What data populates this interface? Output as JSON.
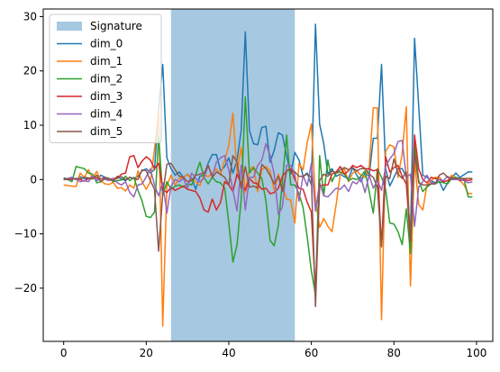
{
  "chart_data": {
    "type": "line",
    "title": "",
    "xlabel": "",
    "ylabel": "",
    "xlim": [
      -4.95,
      103.95
    ],
    "ylim": [
      -29.8,
      31.4
    ],
    "xticks": [
      0,
      20,
      40,
      60,
      80,
      100
    ],
    "yticks": [
      -20,
      -10,
      0,
      10,
      20,
      30
    ],
    "xtick_labels": [
      "0",
      "20",
      "40",
      "60",
      "80",
      "100"
    ],
    "ytick_labels": [
      "−20",
      "−10",
      "0",
      "10",
      "20",
      "30"
    ],
    "grid": false,
    "legend_location": "upper-left",
    "shaded_region": {
      "name": "Signature",
      "x_start": 26,
      "x_end": 56,
      "color": "#a6c8e0"
    },
    "series": [
      {
        "name": "dim_0",
        "color": "#1f77b4",
        "values": [
          0.3,
          0.1,
          0.4,
          0.0,
          0.5,
          0.2,
          0.1,
          0.6,
          -0.2,
          0.8,
          0.4,
          0.2,
          -0.3,
          0.5,
          0.1,
          -0.2,
          0.4,
          0.2,
          0.6,
          1.6,
          2.0,
          1.2,
          1.8,
          13.0,
          21.2,
          4.0,
          2.0,
          0.8,
          1.4,
          0.4,
          1.0,
          0.2,
          -1.8,
          0.6,
          0.8,
          3.0,
          4.6,
          4.6,
          1.6,
          2.4,
          4.0,
          1.2,
          3.6,
          9.0,
          27.2,
          9.0,
          6.6,
          6.4,
          9.6,
          9.8,
          3.2,
          5.4,
          8.6,
          8.2,
          4.4,
          1.0,
          5.0,
          3.6,
          0.6,
          1.2,
          -1.0,
          28.6,
          10.2,
          6.6,
          1.0,
          2.0,
          0.6,
          1.0,
          0.5,
          0.2,
          2.2,
          0.8,
          -0.4,
          1.2,
          0.6,
          7.6,
          7.6,
          21.2,
          2.0,
          -1.2,
          0.4,
          2.0,
          2.0,
          0.5,
          -10.6,
          26.0,
          13.6,
          0.8,
          0.4,
          -0.2,
          -0.6,
          -0.4,
          -2.0,
          -0.6,
          0.4,
          1.2,
          0.4,
          0.9,
          1.4,
          1.4
        ]
      },
      {
        "name": "dim_1",
        "color": "#ff7f0e",
        "values": [
          -1.0,
          -1.1,
          -1.2,
          -1.3,
          1.2,
          0.4,
          1.8,
          0.2,
          1.5,
          -0.2,
          -0.8,
          -0.9,
          -0.5,
          -1.6,
          -1.5,
          -2.1,
          -1.0,
          -1.6,
          1.6,
          -0.4,
          -1.8,
          -0.4,
          5.6,
          12.6,
          -27.0,
          -1.2,
          0.8,
          -1.0,
          0.2,
          0.3,
          1.0,
          -0.2,
          -0.4,
          -1.1,
          1.0,
          0.5,
          1.2,
          2.0,
          0.8,
          3.6,
          6.2,
          12.2,
          1.2,
          6.0,
          -2.4,
          1.8,
          2.4,
          -2.2,
          1.8,
          2.4,
          1.6,
          -2.0,
          1.0,
          -1.2,
          -3.6,
          -3.8,
          -8.0,
          3.0,
          1.8,
          6.8,
          10.2,
          -3.8,
          -8.8,
          -7.2,
          -8.6,
          -9.6,
          -4.6,
          1.0,
          2.0,
          -0.4,
          1.2,
          1.6,
          0.8,
          0.4,
          2.2,
          13.2,
          13.2,
          -25.8,
          5.2,
          6.4,
          6.0,
          0.4,
          4.8,
          13.4,
          -19.6,
          3.6,
          -4.6,
          -5.6,
          -1.0,
          -0.2,
          0.4,
          0.4,
          -0.4,
          -0.2,
          0.8,
          0.4,
          -0.2,
          -1.0,
          -2.6,
          -2.6
        ]
      },
      {
        "name": "dim_2",
        "color": "#2ca02c",
        "values": [
          0.0,
          0.0,
          -0.4,
          2.4,
          2.2,
          2.0,
          1.2,
          1.0,
          -0.6,
          -0.4,
          0.2,
          0.2,
          -0.4,
          -0.2,
          -0.1,
          0.6,
          -0.2,
          0.4,
          -2.0,
          -4.0,
          -6.8,
          -7.0,
          -6.0,
          8.0,
          -3.0,
          -0.4,
          -1.8,
          -1.2,
          -1.0,
          -1.4,
          -0.8,
          -1.0,
          1.0,
          3.2,
          0.4,
          -0.8,
          0.4,
          -0.4,
          -0.6,
          -1.6,
          -8.0,
          -15.2,
          -12.0,
          -3.6,
          15.2,
          1.2,
          2.2,
          1.2,
          0.2,
          -4.0,
          -11.2,
          -12.2,
          -8.4,
          -0.2,
          8.2,
          -1.0,
          -1.0,
          -2.6,
          -5.2,
          -10.6,
          -16.8,
          -21.2,
          4.4,
          -3.0,
          3.6,
          -0.4,
          1.2,
          1.4,
          1.0,
          -0.2,
          0.2,
          0.0,
          0.6,
          1.6,
          -2.2,
          -6.2,
          2.0,
          0.4,
          -1.8,
          -8.0,
          -8.2,
          -9.6,
          -12.0,
          -5.4,
          -13.6,
          6.4,
          -0.2,
          -2.2,
          -1.4,
          -0.8,
          -0.8,
          -0.4,
          -0.6,
          -0.8,
          0.2,
          0.4,
          0.2,
          0.0,
          -3.2,
          -3.2
        ]
      },
      {
        "name": "dim_3",
        "color": "#d62728",
        "values": [
          0.2,
          0.0,
          0.1,
          0.2,
          0.0,
          -0.3,
          0.2,
          0.4,
          0.3,
          0.1,
          0.4,
          0.0,
          0.2,
          0.2,
          1.0,
          1.2,
          4.2,
          4.4,
          2.2,
          3.4,
          4.2,
          3.6,
          2.0,
          3.0,
          -1.8,
          -2.4,
          -1.4,
          -2.0,
          -1.6,
          -1.2,
          -1.8,
          -2.0,
          -2.2,
          -3.4,
          -5.6,
          -6.0,
          -3.6,
          -5.6,
          -4.2,
          -0.4,
          -1.0,
          -2.2,
          1.0,
          -0.8,
          -2.0,
          0.2,
          -0.6,
          -0.8,
          -1.8,
          -1.6,
          -2.6,
          -2.4,
          -1.6,
          0.6,
          1.6,
          2.0,
          0.0,
          -1.6,
          -1.8,
          -4.2,
          -6.0,
          -21.0,
          -1.2,
          -1.0,
          -1.0,
          1.0,
          1.4,
          2.4,
          1.0,
          1.6,
          2.6,
          2.2,
          2.6,
          2.0,
          2.0,
          1.6,
          1.8,
          -12.2,
          4.2,
          1.4,
          2.2,
          2.6,
          0.6,
          -0.8,
          -11.4,
          8.2,
          2.0,
          0.0,
          -0.6,
          0.4,
          0.2,
          0.0,
          -0.4,
          -0.2,
          0.2,
          0.2,
          -0.2,
          0.0,
          -0.2,
          0.0
        ]
      },
      {
        "name": "dim_4",
        "color": "#9467bd",
        "values": [
          0.0,
          0.2,
          0.4,
          0.0,
          -0.4,
          -0.2,
          -0.4,
          0.6,
          -0.2,
          0.2,
          0.0,
          -0.2,
          0.2,
          -0.6,
          -1.0,
          -0.4,
          -2.4,
          -3.2,
          -1.0,
          -0.8,
          0.5,
          2.0,
          -1.0,
          -3.0,
          -0.6,
          -6.2,
          -1.2,
          0.0,
          -0.4,
          0.2,
          -1.6,
          1.2,
          0.2,
          -0.4,
          0.2,
          2.6,
          0.6,
          3.2,
          4.0,
          4.4,
          1.8,
          -2.0,
          -5.8,
          2.6,
          -5.6,
          0.4,
          0.4,
          2.6,
          3.6,
          6.6,
          4.4,
          1.0,
          -6.4,
          -5.0,
          2.6,
          2.6,
          1.0,
          -4.0,
          0.8,
          -1.2,
          3.0,
          -5.8,
          -0.6,
          -3.0,
          -3.2,
          -2.4,
          -1.6,
          -1.8,
          -1.0,
          -2.2,
          -0.4,
          -0.8,
          0.4,
          -2.4,
          0.8,
          -1.6,
          -0.2,
          -2.0,
          2.4,
          3.8,
          4.8,
          7.0,
          7.2,
          0.4,
          1.0,
          -8.6,
          -1.4,
          -0.4,
          0.8,
          -0.6,
          -0.6,
          0.0,
          -0.2,
          0.6,
          0.0,
          0.0,
          0.0,
          -0.2,
          -0.6,
          -0.4
        ]
      },
      {
        "name": "dim_5",
        "color": "#8c564b",
        "values": [
          0.0,
          0.1,
          0.0,
          0.2,
          0.1,
          0.4,
          0.3,
          0.1,
          0.8,
          -0.4,
          0.3,
          0.1,
          -0.2,
          0.6,
          0.5,
          0.0,
          0.4,
          0.2,
          0.0,
          1.8,
          1.6,
          -0.2,
          -1.8,
          -13.2,
          -2.6,
          2.8,
          3.0,
          1.8,
          0.6,
          0.4,
          -0.4,
          -0.2,
          0.8,
          1.0,
          1.2,
          2.6,
          0.4,
          1.4,
          1.0,
          0.4,
          -1.0,
          4.4,
          3.2,
          -1.6,
          2.4,
          -1.4,
          -1.2,
          -1.6,
          2.8,
          2.0,
          0.8,
          -0.8,
          0.6,
          -2.2,
          1.6,
          1.8,
          1.4,
          0.6,
          0.6,
          1.0,
          0.4,
          -23.4,
          -0.2,
          1.0,
          0.6,
          1.6,
          1.2,
          1.8,
          2.2,
          1.8,
          2.2,
          1.6,
          2.0,
          2.0,
          1.0,
          0.4,
          -1.4,
          -12.4,
          0.6,
          0.2,
          3.8,
          1.0,
          0.2,
          1.4,
          -10.8,
          4.8,
          -0.6,
          -1.0,
          -1.0,
          -0.8,
          -0.8,
          0.8,
          1.2,
          0.4,
          0.2,
          0.2,
          0.2,
          0.2,
          0.2,
          0.2
        ]
      }
    ]
  }
}
